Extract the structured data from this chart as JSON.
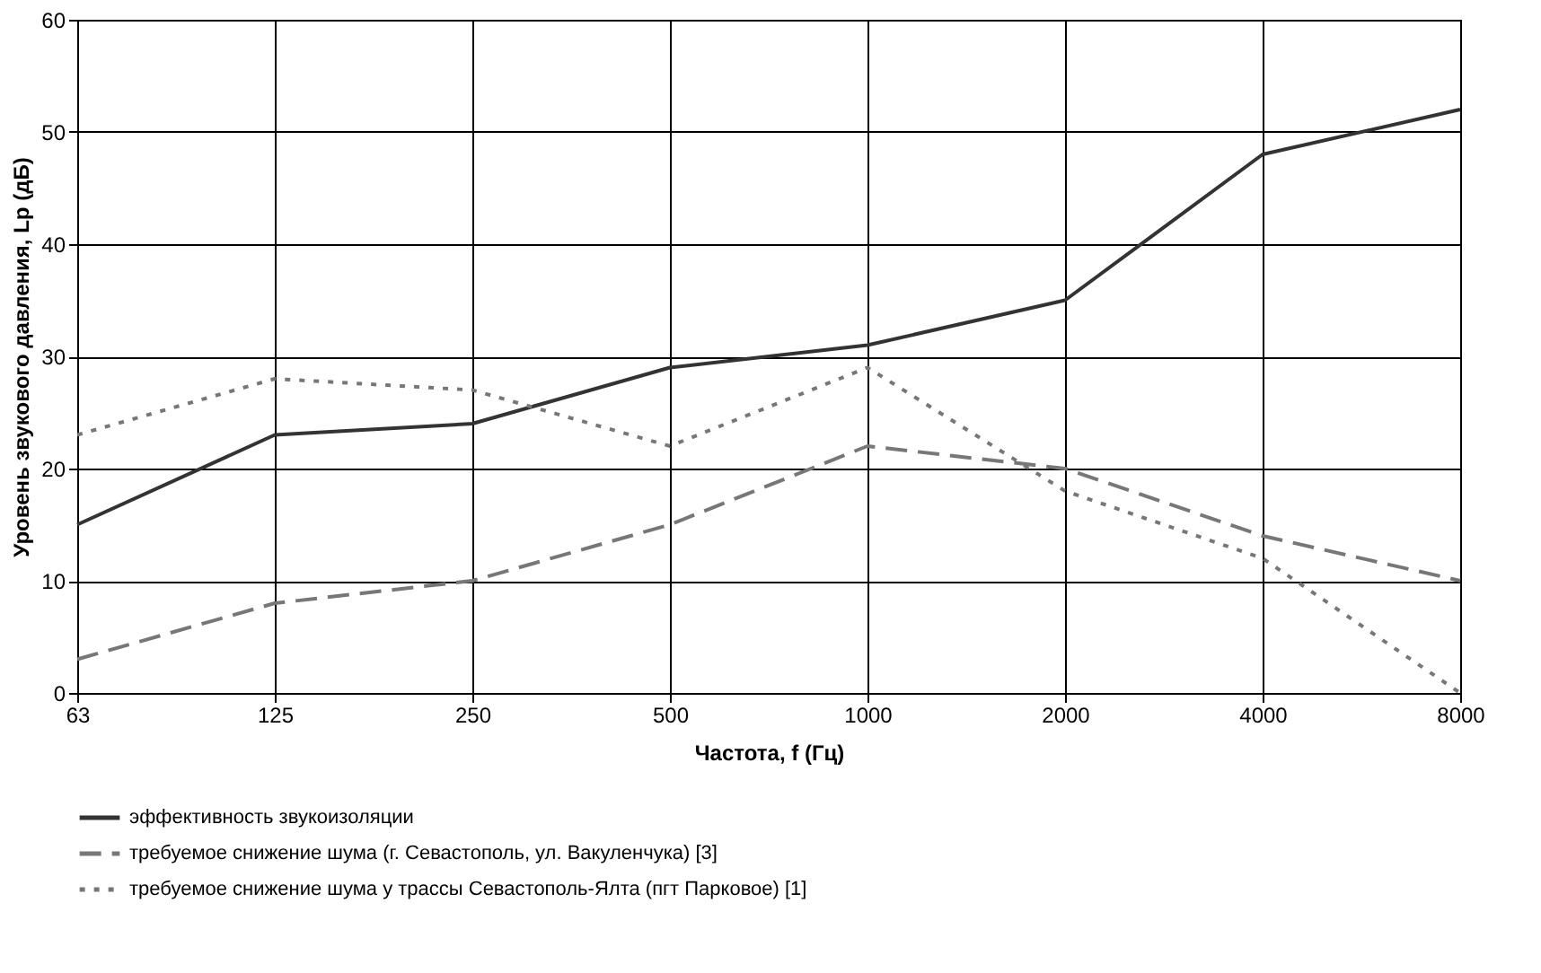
{
  "chart_data": {
    "type": "line",
    "xlabel": "Частота, f (Гц)",
    "ylabel": "Уровень звукового давления, Lр (дБ)",
    "categories": [
      "63",
      "125",
      "250",
      "500",
      "1000",
      "2000",
      "4000",
      "8000"
    ],
    "ylim": [
      0,
      60
    ],
    "yticks": [
      0,
      10,
      20,
      30,
      40,
      50,
      60
    ],
    "grid": true,
    "legend": "bottom",
    "marker": "none",
    "series": [
      {
        "name": "эффективность звукоизоляции",
        "color": "#333333",
        "line_style": "solid",
        "values": [
          15,
          23,
          24,
          29,
          31,
          35,
          48,
          52
        ]
      },
      {
        "name": "требуемое снижение шума (г. Севастополь, ул. Вакуленчука) [3]",
        "color": "#777777",
        "line_style": "dashed",
        "values": [
          3,
          8,
          10,
          15,
          22,
          20,
          14,
          10
        ]
      },
      {
        "name": "требуемое снижение шума у трассы Севастополь-Ялта (пгт Парковое) [1]",
        "color": "#777777",
        "line_style": "dotted",
        "values": [
          23,
          28,
          27,
          22,
          29,
          18,
          12,
          0
        ]
      }
    ]
  }
}
